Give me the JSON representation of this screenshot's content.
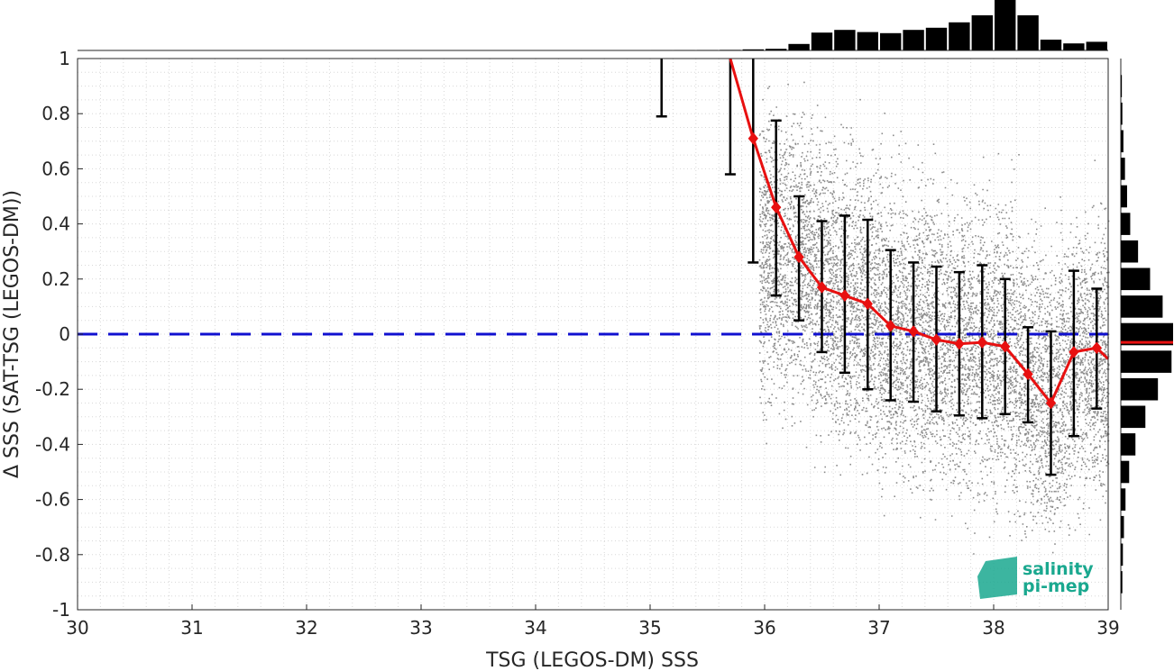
{
  "chart_data": {
    "type": "scatter",
    "title": "",
    "xlabel": "TSG (LEGOS-DM) SSS",
    "ylabel": "Δ SSS (SAT-TSG (LEGOS-DM))",
    "xlim": [
      30,
      39
    ],
    "ylim": [
      -1,
      1
    ],
    "x_ticks": [
      "30",
      "31",
      "32",
      "33",
      "34",
      "35",
      "36",
      "37",
      "38",
      "39"
    ],
    "y_ticks": [
      "-1",
      "-0.8",
      "-0.6",
      "-0.4",
      "-0.2",
      "0",
      "0.2",
      "0.4",
      "0.6",
      "0.8",
      "1"
    ],
    "grid": "minor dotted",
    "reference_line": {
      "y": 0,
      "style": "dashed",
      "color": "#1010d0"
    },
    "scatter_color": "#808080",
    "mean_line_color": "#e81010",
    "binned_stats": {
      "x": [
        35.1,
        35.7,
        35.9,
        36.1,
        36.3,
        36.5,
        36.7,
        36.9,
        37.1,
        37.3,
        37.5,
        37.7,
        37.9,
        38.1,
        38.3,
        38.5,
        38.7,
        38.9
      ],
      "mean": [
        null,
        1.02,
        0.71,
        0.46,
        0.28,
        0.17,
        0.14,
        0.11,
        0.03,
        0.01,
        -0.02,
        -0.035,
        -0.03,
        -0.045,
        -0.145,
        -0.25,
        -0.065,
        -0.05
      ],
      "err_low": [
        0.79,
        0.58,
        0.26,
        0.14,
        0.05,
        -0.065,
        -0.14,
        -0.2,
        -0.24,
        -0.245,
        -0.28,
        -0.295,
        -0.305,
        -0.29,
        -0.32,
        -0.51,
        -0.37,
        -0.27
      ],
      "err_high": [
        1.0,
        1.0,
        1.0,
        0.775,
        0.5,
        0.41,
        0.43,
        0.415,
        0.305,
        0.26,
        0.245,
        0.225,
        0.25,
        0.2,
        0.025,
        0.01,
        0.23,
        0.165
      ],
      "line_end": {
        "x": 39.0,
        "y": -0.09
      }
    },
    "top_histogram": {
      "x_centers": [
        35.1,
        35.3,
        35.5,
        35.7,
        35.9,
        36.1,
        36.3,
        36.5,
        36.7,
        36.9,
        37.1,
        37.3,
        37.5,
        37.7,
        37.9,
        38.1,
        38.3,
        38.5,
        38.7,
        38.9
      ],
      "values": [
        0.002,
        0.004,
        0.006,
        0.01,
        0.02,
        0.03,
        0.12,
        0.33,
        0.38,
        0.34,
        0.32,
        0.38,
        0.42,
        0.52,
        0.65,
        1.0,
        0.65,
        0.2,
        0.13,
        0.16
      ]
    },
    "right_histogram": {
      "y_centers": [
        0.9,
        0.8,
        0.7,
        0.6,
        0.5,
        0.4,
        0.3,
        0.2,
        0.1,
        0.0,
        -0.1,
        -0.2,
        -0.3,
        -0.4,
        -0.5,
        -0.6,
        -0.7,
        -0.8,
        -0.9
      ],
      "values": [
        0.02,
        0.03,
        0.05,
        0.08,
        0.12,
        0.18,
        0.33,
        0.56,
        0.8,
        1.0,
        0.97,
        0.71,
        0.47,
        0.28,
        0.16,
        0.09,
        0.06,
        0.04,
        0.03
      ],
      "mean_line_y": -0.03
    }
  },
  "logo": {
    "line1": "salinity",
    "line2": "pi-mep"
  }
}
